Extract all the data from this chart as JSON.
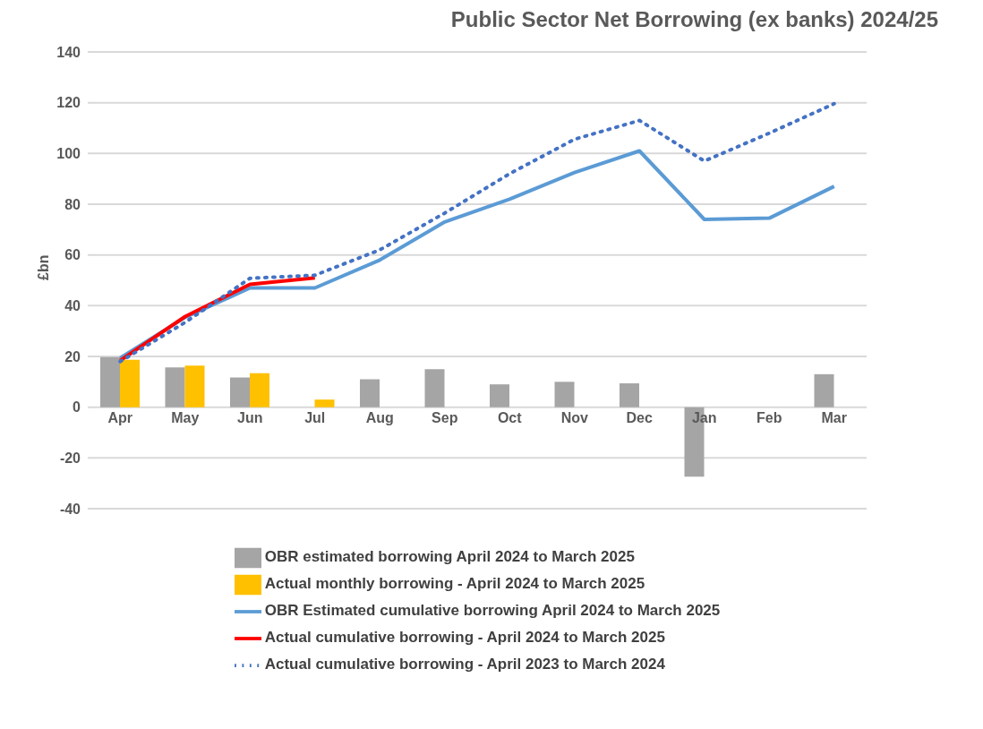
{
  "chart_data": {
    "type": "bar",
    "title": "Public Sector Net Borrowing (ex banks) 2024/25",
    "ylabel": "£bn",
    "categories": [
      "Apr",
      "May",
      "Jun",
      "Jul",
      "Aug",
      "Sep",
      "Oct",
      "Nov",
      "Dec",
      "Jan",
      "Feb",
      "Mar"
    ],
    "series": [
      {
        "name": "OBR estimated borrowing April 2024 to March 2025",
        "color": "#a5a5a5",
        "values": [
          19.7,
          15.7,
          11.7,
          null,
          11,
          15,
          9,
          10,
          9.4,
          -27.4,
          null,
          13
        ]
      },
      {
        "name": "Actual monthly borrowing - April 2024 to March 2025",
        "color": "#ffc000",
        "values": [
          18.7,
          16.4,
          13.4,
          3,
          null,
          null,
          null,
          null,
          null,
          null,
          null,
          null
        ]
      },
      {
        "name": "OBR Estimated cumulative borrowing April 2024 to March 2025",
        "type": "line",
        "color": "#5b9bd5",
        "line_style": "solid",
        "values": [
          19.4,
          35.4,
          47,
          47,
          58,
          73,
          82,
          92.5,
          101,
          74,
          74.5,
          87
        ]
      },
      {
        "name": "Actual cumulative borrowing - April 2024 to March 2025",
        "type": "line",
        "color": "#ff0000",
        "line_style": "solid",
        "values": [
          18.4,
          35.7,
          48.4,
          51,
          null,
          null,
          null,
          null,
          null,
          null,
          null,
          null
        ]
      },
      {
        "name": "Actual cumulative borrowing - April 2023 to March 2024",
        "type": "line",
        "color": "#4472c4",
        "line_style": "dotted",
        "values": [
          18,
          33.4,
          50.8,
          52,
          62,
          76.5,
          92,
          105.6,
          113,
          97,
          108,
          119.6
        ]
      }
    ],
    "ylim": [
      -40,
      140
    ],
    "yticks": [
      -40,
      -20,
      0,
      20,
      40,
      60,
      80,
      100,
      120,
      140
    ],
    "grid": "y",
    "legend": "bottom",
    "marker": "none"
  }
}
